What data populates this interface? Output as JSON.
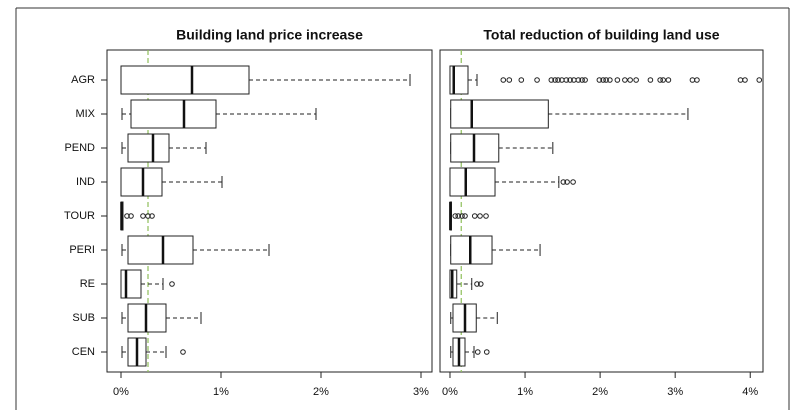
{
  "chart_data": [
    {
      "type": "boxplot",
      "title": "Building land price increase",
      "categories": [
        "AGR",
        "MIX",
        "PEND",
        "IND",
        "TOUR",
        "PERI",
        "RE",
        "SUB",
        "CEN"
      ],
      "boxes": [
        {
          "min": 0,
          "q1": 0,
          "median": 0.71,
          "q3": 1.28,
          "max": 2.89,
          "outliers": []
        },
        {
          "min": 0.01,
          "q1": 0.1,
          "median": 0.63,
          "q3": 0.95,
          "max": 1.95,
          "outliers": []
        },
        {
          "min": 0.01,
          "q1": 0.07,
          "median": 0.32,
          "q3": 0.48,
          "max": 0.85,
          "outliers": []
        },
        {
          "min": 0,
          "q1": 0,
          "median": 0.22,
          "q3": 0.41,
          "max": 1.01,
          "outliers": []
        },
        {
          "min": 0,
          "q1": 0,
          "median": 0.005,
          "q3": 0.02,
          "max": 0.02,
          "outliers": [
            0.06,
            0.1,
            0.22,
            0.27,
            0.31
          ]
        },
        {
          "min": 0.01,
          "q1": 0.07,
          "median": 0.42,
          "q3": 0.72,
          "max": 1.48,
          "outliers": []
        },
        {
          "min": 0,
          "q1": 0,
          "median": 0.05,
          "q3": 0.2,
          "max": 0.42,
          "outliers": [
            0.51
          ]
        },
        {
          "min": 0.01,
          "q1": 0.07,
          "median": 0.25,
          "q3": 0.45,
          "max": 0.8,
          "outliers": []
        },
        {
          "min": 0.01,
          "q1": 0.07,
          "median": 0.16,
          "q3": 0.25,
          "max": 0.45,
          "outliers": [
            0.62
          ]
        }
      ],
      "reference_line": 0.27,
      "reference_color": "#8fbf5a",
      "xlim": [
        -0.14,
        3.11
      ],
      "xticks": [
        {
          "value": 0,
          "label": "0%"
        },
        {
          "value": 1,
          "label": "1%"
        },
        {
          "value": 2,
          "label": "2%"
        },
        {
          "value": 3,
          "label": "3%"
        }
      ]
    },
    {
      "type": "boxplot",
      "title": "Total reduction of building land use",
      "boxes": [
        {
          "min": 0,
          "q1": 0,
          "median": 0.05,
          "q3": 0.24,
          "max": 0.36,
          "outliers": [
            0.71,
            0.79,
            0.95,
            1.16,
            1.35,
            1.4,
            1.44,
            1.49,
            1.55,
            1.6,
            1.65,
            1.71,
            1.76,
            1.8,
            1.99,
            2.04,
            2.08,
            2.13,
            2.23,
            2.33,
            2.4,
            2.48,
            2.67,
            2.8,
            2.84,
            2.91,
            3.23,
            3.29,
            3.87,
            3.93,
            4.12
          ]
        },
        {
          "min": 0.01,
          "q1": 0.01,
          "median": 0.29,
          "q3": 1.31,
          "max": 3.17,
          "outliers": []
        },
        {
          "min": 0.01,
          "q1": 0.01,
          "median": 0.32,
          "q3": 0.65,
          "max": 1.37,
          "outliers": []
        },
        {
          "min": 0,
          "q1": 0,
          "median": 0.21,
          "q3": 0.6,
          "max": 1.45,
          "outliers": [
            1.51,
            1.56,
            1.64
          ]
        },
        {
          "min": 0,
          "q1": 0,
          "median": 0.005,
          "q3": 0.02,
          "max": 0.02,
          "outliers": [
            0.07,
            0.11,
            0.16,
            0.2,
            0.33,
            0.4,
            0.48
          ]
        },
        {
          "min": 0.01,
          "q1": 0.01,
          "median": 0.27,
          "q3": 0.56,
          "max": 1.2,
          "outliers": []
        },
        {
          "min": 0,
          "q1": 0,
          "median": 0.03,
          "q3": 0.09,
          "max": 0.29,
          "outliers": [
            0.36,
            0.41
          ]
        },
        {
          "min": 0.01,
          "q1": 0.04,
          "median": 0.2,
          "q3": 0.35,
          "max": 0.63,
          "outliers": []
        },
        {
          "min": 0.01,
          "q1": 0.04,
          "median": 0.12,
          "q3": 0.2,
          "max": 0.32,
          "outliers": [
            0.37,
            0.49
          ]
        }
      ],
      "reference_line": 0.15,
      "reference_color": "#8fbf5a",
      "xlim": [
        -0.133,
        4.17
      ],
      "xticks": [
        {
          "value": 0,
          "label": "0%"
        },
        {
          "value": 1,
          "label": "1%"
        },
        {
          "value": 2,
          "label": "2%"
        },
        {
          "value": 3,
          "label": "3%"
        },
        {
          "value": 4,
          "label": "4%"
        }
      ]
    }
  ]
}
